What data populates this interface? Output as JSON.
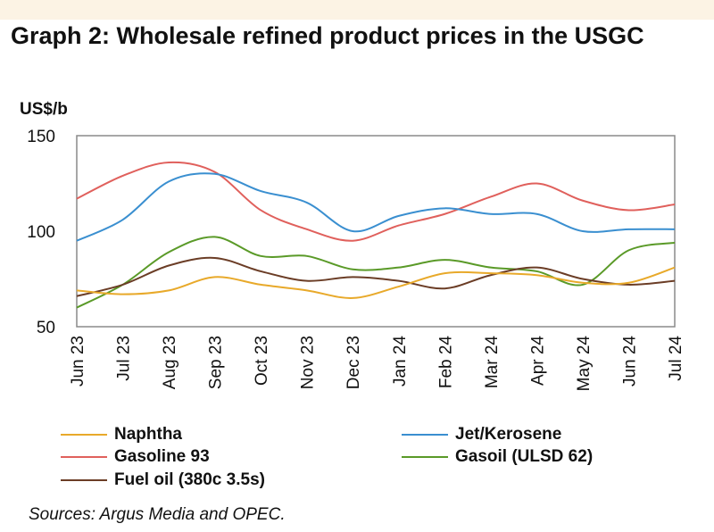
{
  "title": "Graph 2: Wholesale refined product prices in the USGC",
  "source": "Sources: Argus Media and OPEC.",
  "chart_data": {
    "type": "line",
    "title": "Graph 2: Wholesale refined product prices in the USGC",
    "ylabel": "US$/b",
    "xlabel": "",
    "ylim": [
      50,
      150
    ],
    "yticks": [
      "50",
      "100",
      "150"
    ],
    "grid": false,
    "legend_position": "bottom",
    "categories": [
      "Jun 23",
      "Jul 23",
      "Aug 23",
      "Sep 23",
      "Oct 23",
      "Nov 23",
      "Dec 23",
      "Jan 24",
      "Feb 24",
      "Mar 24",
      "Apr 24",
      "May 24",
      "Jun 24",
      "Jul 24"
    ],
    "series": [
      {
        "name": "Naphtha",
        "color": "#e8a92a",
        "values": [
          69,
          67,
          69,
          76,
          72,
          69,
          65,
          71,
          78,
          78,
          77,
          73,
          73,
          81
        ]
      },
      {
        "name": "Jet/Kerosene",
        "color": "#3a8fd0",
        "values": [
          95,
          106,
          126,
          130,
          121,
          115,
          100,
          108,
          112,
          109,
          109,
          100,
          101,
          101
        ]
      },
      {
        "name": "Gasoline 93",
        "color": "#e0605c",
        "values": [
          117,
          129,
          136,
          131,
          111,
          101,
          95,
          103,
          109,
          118,
          125,
          116,
          111,
          114
        ]
      },
      {
        "name": "Gasoil (ULSD 62)",
        "color": "#5a9a28",
        "values": [
          60,
          72,
          89,
          97,
          87,
          87,
          80,
          81,
          85,
          81,
          79,
          72,
          90,
          94
        ]
      },
      {
        "name": "Fuel oil (380c 3.5s)",
        "color": "#6b3d26",
        "values": [
          66,
          72,
          82,
          86,
          79,
          74,
          76,
          74,
          70,
          77,
          81,
          75,
          72,
          74
        ]
      }
    ]
  }
}
